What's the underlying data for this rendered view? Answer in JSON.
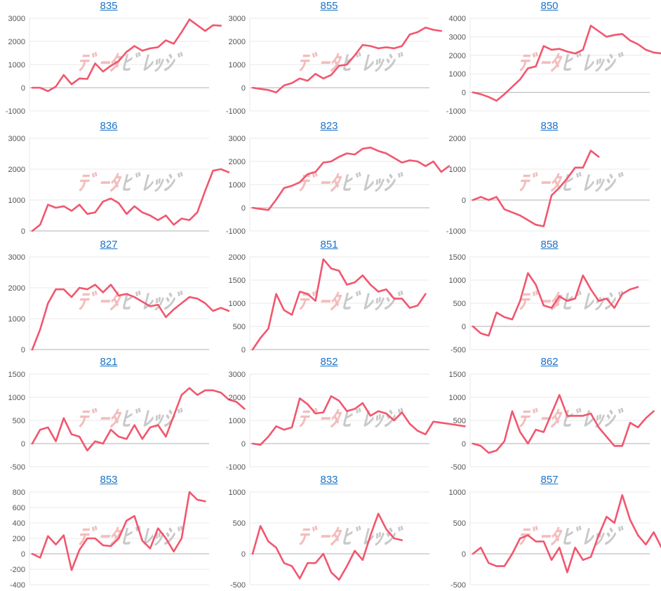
{
  "colors": {
    "line": "#f2566e",
    "grid": "#e8e8e8",
    "axis": "#b0b0b0",
    "title": "#1a73c8",
    "tick": "#555555",
    "wm_left": "#f0a8a8",
    "wm_right": "#b8b8b8"
  },
  "watermark": {
    "left": "ﾃﾞｰﾀ",
    "right": "ﾋﾞﾚｯｼﾞ"
  },
  "chart_data": [
    {
      "type": "line",
      "title": "835",
      "ylim": [
        -1000,
        3000
      ],
      "yticks": [
        -1000,
        0,
        1000,
        2000,
        3000
      ],
      "values": [
        0,
        0,
        -150,
        50,
        550,
        150,
        400,
        380,
        1050,
        700,
        950,
        1150,
        1550,
        1800,
        1600,
        1700,
        1750,
        2050,
        1900,
        2400,
        2950,
        2700,
        2450,
        2700,
        2680
      ]
    },
    {
      "type": "line",
      "title": "855",
      "ylim": [
        -1000,
        3000
      ],
      "yticks": [
        -1000,
        0,
        1000,
        2000,
        3000
      ],
      "values": [
        0,
        -50,
        -100,
        -200,
        100,
        200,
        400,
        300,
        600,
        400,
        550,
        950,
        1000,
        1400,
        1850,
        1800,
        1700,
        1750,
        1700,
        1800,
        2300,
        2400,
        2600,
        2500,
        2450
      ]
    },
    {
      "type": "line",
      "title": "850",
      "ylim": [
        -1000,
        4000
      ],
      "yticks": [
        -1000,
        0,
        1000,
        2000,
        3000,
        4000
      ],
      "values": [
        0,
        -100,
        -250,
        -450,
        -100,
        300,
        700,
        1300,
        1400,
        2500,
        2300,
        2350,
        2200,
        2100,
        2300,
        3600,
        3300,
        3000,
        3100,
        3150,
        2800,
        2600,
        2300,
        2150,
        2100,
        2050,
        2200
      ]
    },
    {
      "type": "line",
      "title": "836",
      "ylim": [
        0,
        3000
      ],
      "yticks": [
        0,
        1000,
        2000,
        3000
      ],
      "values": [
        0,
        200,
        850,
        750,
        800,
        650,
        850,
        550,
        600,
        950,
        1050,
        900,
        550,
        800,
        600,
        500,
        350,
        500,
        200,
        400,
        350,
        600,
        1300,
        1950,
        2000,
        1900
      ]
    },
    {
      "type": "line",
      "title": "823",
      "ylim": [
        -1000,
        3000
      ],
      "yticks": [
        -1000,
        0,
        1000,
        2000,
        3000
      ],
      "values": [
        0,
        -50,
        -100,
        350,
        850,
        950,
        1100,
        1450,
        1550,
        1950,
        2000,
        2200,
        2350,
        2300,
        2550,
        2600,
        2450,
        2350,
        2150,
        1950,
        2050,
        2000,
        1800,
        2000,
        1550,
        1800
      ]
    },
    {
      "type": "line",
      "title": "838",
      "ylim": [
        -1000,
        2000
      ],
      "yticks": [
        -1000,
        0,
        1000,
        2000
      ],
      "values": [
        0,
        100,
        0,
        100,
        -300,
        -400,
        -500,
        -650,
        -800,
        -850,
        150,
        400,
        700,
        1050,
        1050,
        1600,
        1400
      ]
    },
    {
      "type": "line",
      "title": "827",
      "ylim": [
        0,
        3000
      ],
      "yticks": [
        0,
        1000,
        2000,
        3000
      ],
      "values": [
        0,
        650,
        1500,
        1950,
        1950,
        1700,
        2000,
        1950,
        2100,
        1850,
        2100,
        1750,
        1800,
        1700,
        1550,
        1400,
        1450,
        1050,
        1300,
        1500,
        1700,
        1650,
        1500,
        1250,
        1350,
        1250
      ]
    },
    {
      "type": "line",
      "title": "851",
      "ylim": [
        0,
        2000
      ],
      "yticks": [
        0,
        500,
        1000,
        1500,
        2000
      ],
      "values": [
        0,
        250,
        450,
        1200,
        850,
        750,
        1250,
        1200,
        1050,
        1950,
        1750,
        1700,
        1400,
        1450,
        1600,
        1400,
        1250,
        1300,
        1100,
        1100,
        900,
        950,
        1200
      ]
    },
    {
      "type": "line",
      "title": "858",
      "ylim": [
        -500,
        1500
      ],
      "yticks": [
        -500,
        0,
        500,
        1000,
        1500
      ],
      "values": [
        0,
        -150,
        -200,
        300,
        200,
        150,
        550,
        1150,
        900,
        450,
        400,
        650,
        550,
        600,
        1100,
        800,
        550,
        600,
        400,
        700,
        800,
        850
      ]
    },
    {
      "type": "line",
      "title": "821",
      "ylim": [
        -500,
        1500
      ],
      "yticks": [
        -500,
        0,
        500,
        1000,
        1500
      ],
      "values": [
        0,
        300,
        350,
        50,
        550,
        200,
        150,
        -150,
        50,
        0,
        300,
        150,
        100,
        400,
        100,
        350,
        400,
        150,
        600,
        1050,
        1200,
        1050,
        1150,
        1150,
        1100,
        950,
        900,
        750
      ]
    },
    {
      "type": "line",
      "title": "852",
      "ylim": [
        -1000,
        3000
      ],
      "yticks": [
        -1000,
        0,
        1000,
        2000,
        3000
      ],
      "values": [
        0,
        -50,
        300,
        750,
        600,
        700,
        1950,
        1700,
        1300,
        1350,
        2050,
        1850,
        1400,
        1500,
        1750,
        1200,
        1400,
        1300,
        1000,
        1350,
        850,
        550,
        400,
        950,
        900,
        850,
        800,
        750
      ]
    },
    {
      "type": "line",
      "title": "862",
      "ylim": [
        -500,
        1500
      ],
      "yticks": [
        -500,
        0,
        500,
        1000,
        1500
      ],
      "values": [
        0,
        -50,
        -200,
        -150,
        50,
        700,
        250,
        0,
        300,
        250,
        650,
        1050,
        600,
        600,
        600,
        650,
        350,
        150,
        -50,
        -50,
        450,
        350,
        550,
        700
      ]
    },
    {
      "type": "line",
      "title": "853",
      "ylim": [
        -400,
        800
      ],
      "yticks": [
        -400,
        -200,
        0,
        200,
        400,
        600,
        800
      ],
      "values": [
        0,
        -50,
        230,
        120,
        240,
        -210,
        50,
        200,
        200,
        110,
        100,
        200,
        430,
        490,
        170,
        70,
        330,
        200,
        30,
        200,
        800,
        700,
        680
      ]
    },
    {
      "type": "line",
      "title": "833",
      "ylim": [
        -500,
        1000
      ],
      "yticks": [
        -500,
        0,
        500,
        1000
      ],
      "values": [
        0,
        450,
        200,
        100,
        -150,
        -200,
        -400,
        -150,
        -150,
        0,
        -300,
        -420,
        -200,
        50,
        -100,
        300,
        650,
        400,
        250,
        220
      ]
    },
    {
      "type": "line",
      "title": "857",
      "ylim": [
        -500,
        1000
      ],
      "yticks": [
        -500,
        0,
        500,
        1000
      ],
      "values": [
        0,
        100,
        -150,
        -200,
        -200,
        0,
        250,
        300,
        200,
        200,
        -100,
        100,
        -300,
        100,
        -100,
        -50,
        300,
        600,
        500,
        950,
        550,
        300,
        150,
        350,
        100
      ]
    }
  ]
}
